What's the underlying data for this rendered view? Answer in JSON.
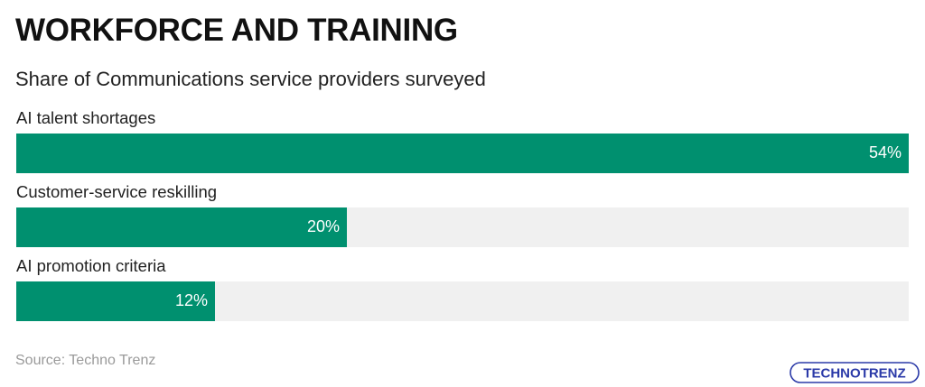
{
  "header": {
    "title": "WORKFORCE AND TRAINING",
    "subtitle": "Share of Communications service providers surveyed"
  },
  "chart_data": {
    "type": "bar",
    "orientation": "horizontal",
    "categories": [
      "AI talent shortages",
      "Customer-service reskilling",
      "AI promotion criteria"
    ],
    "values": [
      54,
      20,
      12
    ],
    "value_labels": [
      "54%",
      "20%",
      "12%"
    ],
    "xlim": [
      0,
      54
    ],
    "title": "WORKFORCE AND TRAINING",
    "subtitle": "Share of Communications service providers surveyed",
    "bar_color": "#00906f",
    "track_color": "#f0f0f0",
    "grid": false
  },
  "footer": {
    "source": "Source: Techno Trenz"
  },
  "logo": {
    "text": "TECHNOTRENZ",
    "color": "#2b3aa8"
  }
}
